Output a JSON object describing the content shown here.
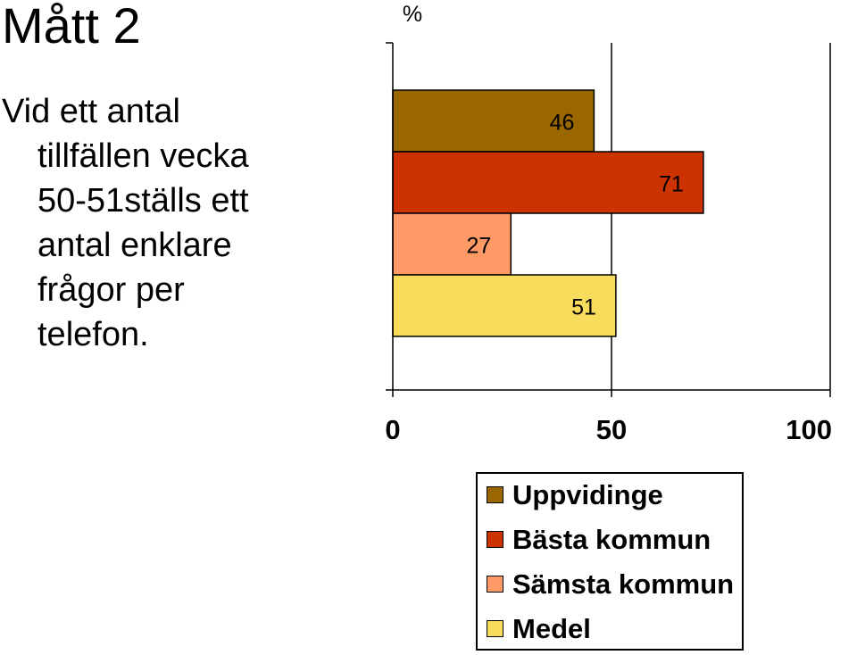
{
  "slide": {
    "title": "Mått 2",
    "description_lines": [
      "Vid ett antal",
      "tillfällen vecka",
      "50-51ställs ett",
      "antal enklare",
      "frågor per",
      "telefon."
    ]
  },
  "chart_data": {
    "type": "bar",
    "orientation": "horizontal",
    "unit_label": "%",
    "xlim": [
      0,
      100
    ],
    "xticks": [
      "0",
      "50",
      "100"
    ],
    "series": [
      {
        "name": "Uppvidinge",
        "value": 46,
        "label": "46",
        "color": "#996600"
      },
      {
        "name": "Bästa kommun",
        "value": 71,
        "label": "71",
        "color": "#CC3300"
      },
      {
        "name": "Sämsta kommun",
        "value": 27,
        "label": "27",
        "color": "#FF9966"
      },
      {
        "name": "Medel",
        "value": 51,
        "label": "51",
        "color": "#F8DC5C"
      }
    ],
    "gridlines_x": [
      50,
      100
    ],
    "legend": "bottom-right"
  }
}
